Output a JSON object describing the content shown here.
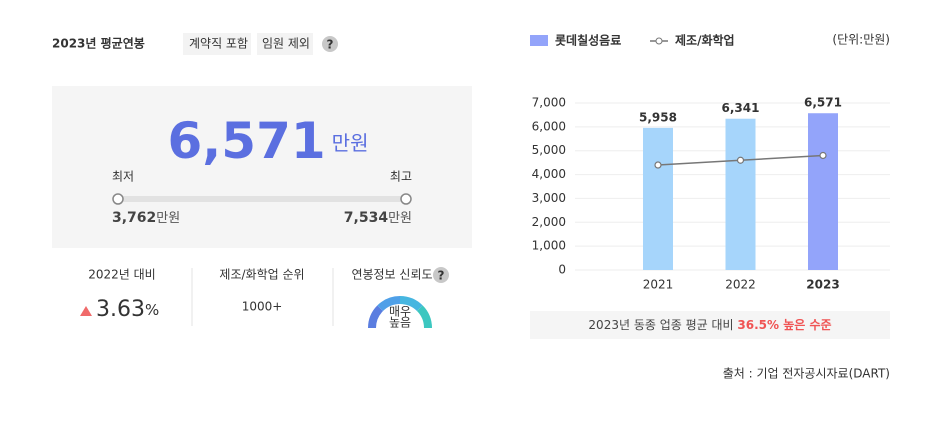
{
  "header": {
    "title": "2023년 평균연봉",
    "tags": [
      "계약직 포함",
      "임원 제외"
    ],
    "help": "?"
  },
  "salary": {
    "value": "6,571",
    "unit": "만원",
    "min_label": "최저",
    "max_label": "최고",
    "min": "3,762",
    "min_unit": "만원",
    "max": "7,534",
    "max_unit": "만원"
  },
  "stats": [
    {
      "label": "2022년 대비",
      "value": "3.63",
      "unit": "%"
    },
    {
      "label": "제조/화학업 순위",
      "value": "1000+"
    },
    {
      "label": "연봉정보 신뢰도",
      "help": "?",
      "gauge_lines": [
        "매우",
        "높음"
      ]
    }
  ],
  "chart_data": {
    "type": "bar",
    "unit_label": "(단위:만원)",
    "categories": [
      "2021",
      "2022",
      "2023"
    ],
    "series": [
      {
        "name": "롯데칠성음료",
        "type": "bar",
        "color": "#93a4fa",
        "colors": [
          "#a6d5fb",
          "#a6d5fb",
          "#93a4fa"
        ],
        "values": [
          5958,
          6341,
          6571
        ],
        "value_labels": [
          "5,958",
          "6,341",
          "6,571"
        ]
      },
      {
        "name": "제조/화학업",
        "type": "line",
        "color": "#777777",
        "values": [
          4400,
          4600,
          4800
        ]
      }
    ],
    "ylim": [
      0,
      7000
    ],
    "yticks": [
      0,
      {
        "value": 1000,
        "label": "1,000"
      },
      {
        "value": 2000,
        "label": "2,000"
      },
      {
        "value": 3000,
        "label": "3,000"
      },
      {
        "value": 4000,
        "label": "4,000"
      },
      {
        "value": 5000,
        "label": "5,000"
      },
      {
        "value": 6000,
        "label": "6,000"
      },
      {
        "value": 7000,
        "label": "7,000"
      }
    ],
    "grid": true
  },
  "comparison": {
    "text": "2023년 동종 업종 평균 대비 ",
    "highlight": "36.5% 높은 수준"
  },
  "source": "출처 : 기업 전자공시자료(DART)"
}
